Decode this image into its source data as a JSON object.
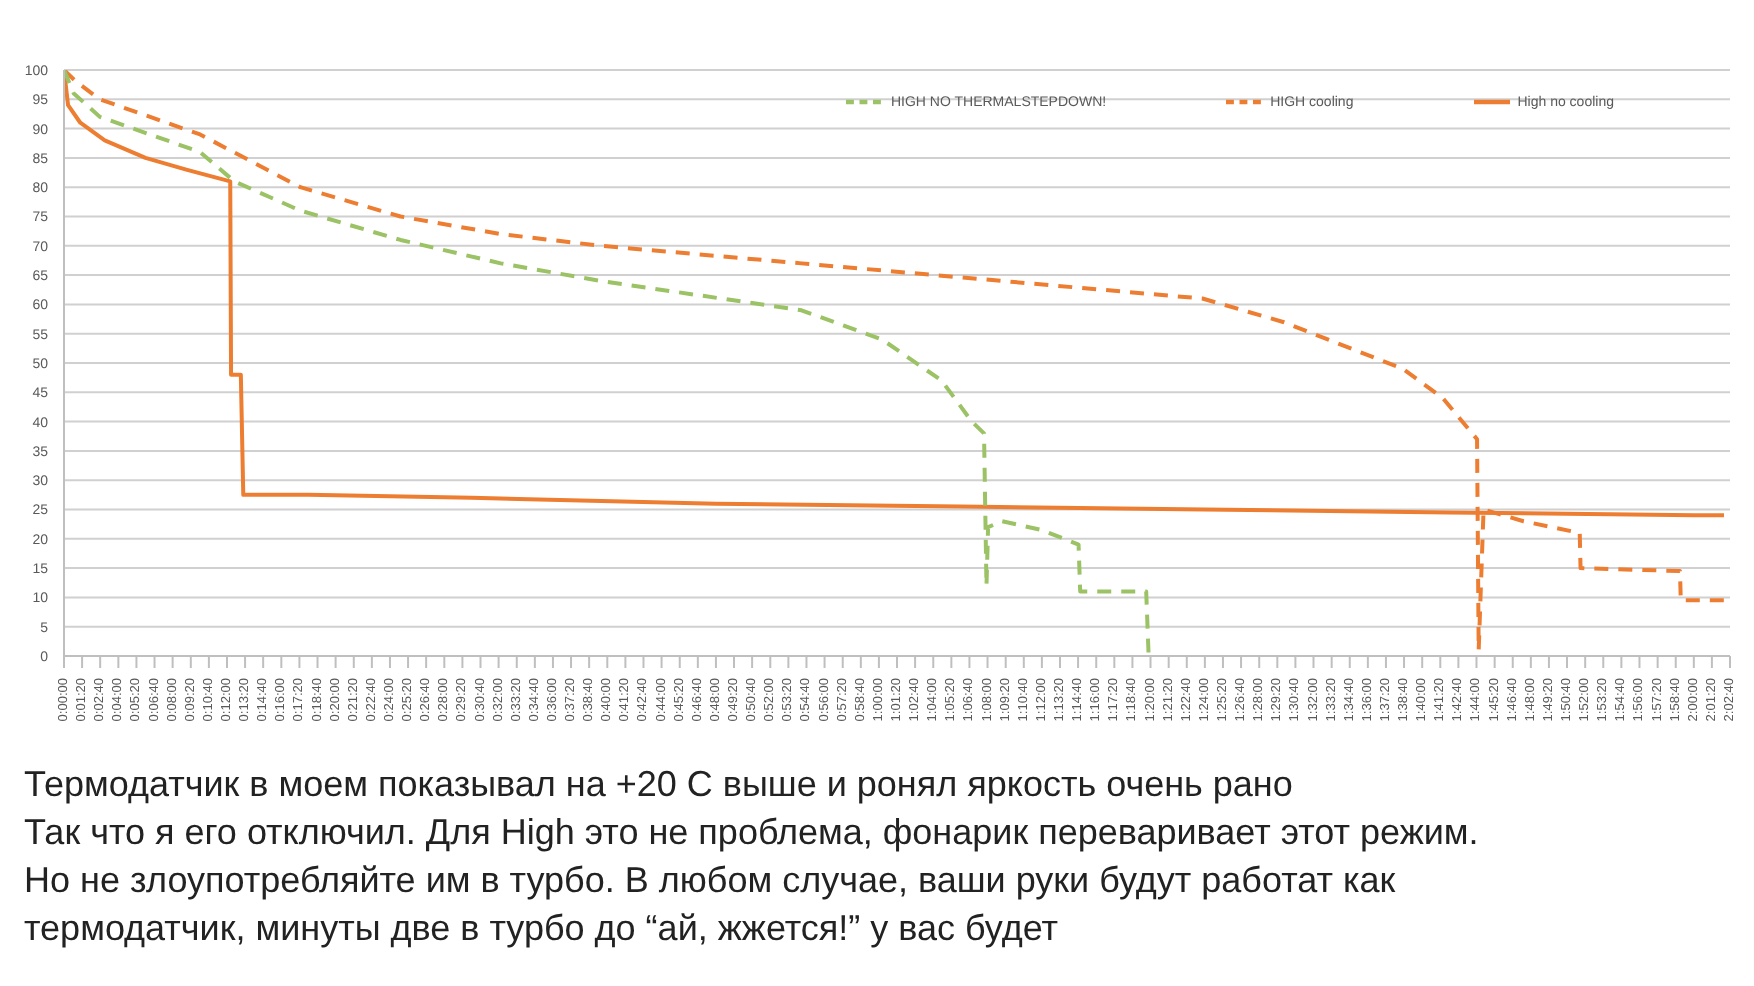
{
  "chart_data": {
    "type": "line",
    "ylim": [
      0,
      100
    ],
    "yticks": [
      0,
      5,
      10,
      15,
      20,
      25,
      30,
      35,
      40,
      45,
      50,
      55,
      60,
      65,
      70,
      75,
      80,
      85,
      90,
      95,
      100
    ],
    "xlim": [
      0,
      2.0444
    ],
    "xticks": [
      {
        "value": 0,
        "label": "0:00:00"
      },
      {
        "value": 0.0222,
        "label": "0:01:20"
      },
      {
        "value": 0.0444,
        "label": "0:02:40"
      },
      {
        "value": 0.0667,
        "label": "0:04:00"
      },
      {
        "value": 0.0889,
        "label": "0:05:20"
      },
      {
        "value": 0.1111,
        "label": "0:06:40"
      },
      {
        "value": 0.1333,
        "label": "0:08:00"
      },
      {
        "value": 0.1556,
        "label": "0:09:20"
      },
      {
        "value": 0.1778,
        "label": "0:10:40"
      },
      {
        "value": 0.2,
        "label": "0:12:00"
      },
      {
        "value": 0.2222,
        "label": "0:13:20"
      },
      {
        "value": 0.2444,
        "label": "0:14:40"
      },
      {
        "value": 0.2667,
        "label": "0:16:00"
      },
      {
        "value": 0.2889,
        "label": "0:17:20"
      },
      {
        "value": 0.3111,
        "label": "0:18:40"
      },
      {
        "value": 0.3333,
        "label": "0:20:00"
      },
      {
        "value": 0.3556,
        "label": "0:21:20"
      },
      {
        "value": 0.3778,
        "label": "0:22:40"
      },
      {
        "value": 0.4,
        "label": "0:24:00"
      },
      {
        "value": 0.4222,
        "label": "0:25:20"
      },
      {
        "value": 0.4444,
        "label": "0:26:40"
      },
      {
        "value": 0.4667,
        "label": "0:28:00"
      },
      {
        "value": 0.4889,
        "label": "0:29:20"
      },
      {
        "value": 0.5111,
        "label": "0:30:40"
      },
      {
        "value": 0.5333,
        "label": "0:32:00"
      },
      {
        "value": 0.5556,
        "label": "0:33:20"
      },
      {
        "value": 0.5778,
        "label": "0:34:40"
      },
      {
        "value": 0.6,
        "label": "0:36:00"
      },
      {
        "value": 0.6222,
        "label": "0:37:20"
      },
      {
        "value": 0.6444,
        "label": "0:38:40"
      },
      {
        "value": 0.6667,
        "label": "0:40:00"
      },
      {
        "value": 0.6889,
        "label": "0:41:20"
      },
      {
        "value": 0.7111,
        "label": "0:42:40"
      },
      {
        "value": 0.7333,
        "label": "0:44:00"
      },
      {
        "value": 0.7556,
        "label": "0:45:20"
      },
      {
        "value": 0.7778,
        "label": "0:46:40"
      },
      {
        "value": 0.8,
        "label": "0:48:00"
      },
      {
        "value": 0.8222,
        "label": "0:49:20"
      },
      {
        "value": 0.8444,
        "label": "0:50:40"
      },
      {
        "value": 0.8667,
        "label": "0:52:00"
      },
      {
        "value": 0.8889,
        "label": "0:53:20"
      },
      {
        "value": 0.9111,
        "label": "0:54:40"
      },
      {
        "value": 0.9333,
        "label": "0:56:00"
      },
      {
        "value": 0.9556,
        "label": "0:57:20"
      },
      {
        "value": 0.9778,
        "label": "0:58:40"
      },
      {
        "value": 1,
        "label": "1:00:00"
      },
      {
        "value": 1.0222,
        "label": "1:01:20"
      },
      {
        "value": 1.0444,
        "label": "1:02:40"
      },
      {
        "value": 1.0667,
        "label": "1:04:00"
      },
      {
        "value": 1.0889,
        "label": "1:05:20"
      },
      {
        "value": 1.1111,
        "label": "1:06:40"
      },
      {
        "value": 1.1333,
        "label": "1:08:00"
      },
      {
        "value": 1.1556,
        "label": "1:09:20"
      },
      {
        "value": 1.1778,
        "label": "1:10:40"
      },
      {
        "value": 1.2,
        "label": "1:12:00"
      },
      {
        "value": 1.2222,
        "label": "1:13:20"
      },
      {
        "value": 1.2444,
        "label": "1:14:40"
      },
      {
        "value": 1.2667,
        "label": "1:16:00"
      },
      {
        "value": 1.2889,
        "label": "1:17:20"
      },
      {
        "value": 1.3111,
        "label": "1:18:40"
      },
      {
        "value": 1.3333,
        "label": "1:20:00"
      },
      {
        "value": 1.3556,
        "label": "1:21:20"
      },
      {
        "value": 1.3778,
        "label": "1:22:40"
      },
      {
        "value": 1.4,
        "label": "1:24:00"
      },
      {
        "value": 1.4222,
        "label": "1:25:20"
      },
      {
        "value": 1.4444,
        "label": "1:26:40"
      },
      {
        "value": 1.4667,
        "label": "1:28:00"
      },
      {
        "value": 1.4889,
        "label": "1:29:20"
      },
      {
        "value": 1.5111,
        "label": "1:30:40"
      },
      {
        "value": 1.5333,
        "label": "1:32:00"
      },
      {
        "value": 1.5556,
        "label": "1:33:20"
      },
      {
        "value": 1.5778,
        "label": "1:34:40"
      },
      {
        "value": 1.6,
        "label": "1:36:00"
      },
      {
        "value": 1.6222,
        "label": "1:37:20"
      },
      {
        "value": 1.6444,
        "label": "1:38:40"
      },
      {
        "value": 1.6667,
        "label": "1:40:00"
      },
      {
        "value": 1.6889,
        "label": "1:41:20"
      },
      {
        "value": 1.7111,
        "label": "1:42:40"
      },
      {
        "value": 1.7333,
        "label": "1:44:00"
      },
      {
        "value": 1.7556,
        "label": "1:45:20"
      },
      {
        "value": 1.7778,
        "label": "1:46:40"
      },
      {
        "value": 1.8,
        "label": "1:48:00"
      },
      {
        "value": 1.8222,
        "label": "1:49:20"
      },
      {
        "value": 1.8444,
        "label": "1:50:40"
      },
      {
        "value": 1.8667,
        "label": "1:52:00"
      },
      {
        "value": 1.8889,
        "label": "1:53:20"
      },
      {
        "value": 1.9111,
        "label": "1:54:40"
      },
      {
        "value": 1.9333,
        "label": "1:56:00"
      },
      {
        "value": 1.9556,
        "label": "1:57:20"
      },
      {
        "value": 1.9778,
        "label": "1:58:40"
      },
      {
        "value": 2,
        "label": "2:00:00"
      },
      {
        "value": 2.0222,
        "label": "2:01:20"
      },
      {
        "value": 2.0444,
        "label": "2:02:40"
      }
    ],
    "grid": "y",
    "legend": "top right",
    "marker": "none",
    "series": [
      {
        "name": "HIGH cooling",
        "color": "#ed7d31",
        "line_style": "dashed",
        "x": [
          0,
          0.015,
          0.044,
          0.167,
          0.29,
          0.413,
          0.536,
          0.659,
          0.905,
          1.151,
          1.397,
          1.496,
          1.643,
          1.692,
          1.734,
          1.736,
          1.742,
          1.791,
          1.86,
          1.861,
          1.983,
          1.984,
          2.037
        ],
        "values": [
          100,
          98,
          95,
          89,
          80,
          75,
          72,
          70,
          67,
          64,
          61,
          57,
          49,
          44,
          37,
          1,
          25,
          23,
          21,
          15,
          14.5,
          9.5,
          9.5
        ]
      },
      {
        "name": "High no cooling",
        "color": "#ed7d31",
        "line_style": "solid",
        "x": [
          0,
          0.005,
          0.02,
          0.05,
          0.1,
          0.15,
          0.204,
          0.205,
          0.217,
          0.22,
          0.3,
          0.5,
          0.8,
          1.1,
          1.4,
          1.7,
          2.0,
          2.037
        ],
        "values": [
          100,
          94,
          91,
          88,
          85,
          83,
          81,
          48,
          48,
          27.5,
          27.5,
          27,
          26,
          25.5,
          25,
          24.5,
          24,
          24
        ]
      },
      {
        "name": "HIGH NO THERMALSTEPDOWN!",
        "color": "#9bc264",
        "line_style": "dashed",
        "x": [
          0,
          0.012,
          0.044,
          0.167,
          0.209,
          0.29,
          0.413,
          0.536,
          0.659,
          0.905,
          1.004,
          1.077,
          1.114,
          1.129,
          1.132,
          1.134,
          1.151,
          1.2,
          1.245,
          1.247,
          1.328,
          1.331
        ],
        "values": [
          100,
          96,
          92,
          86,
          81,
          76,
          71,
          67,
          64,
          59,
          54,
          47,
          40,
          38,
          12,
          22,
          23,
          21.5,
          19,
          11,
          11,
          0
        ]
      }
    ],
    "annotations": [
      "Термодатчик в моем показывал на +20 C выше и ронял яркость очень рано",
      "Так что я его отключил. Для High это не проблема, фонарик переваривает этот режим.",
      "Но не злоупотребляйте им в турбо. В любом случае, ваши руки будут работат как",
      "термодатчик, минуты две в турбо до “ай, жжется!” у вас будет"
    ]
  }
}
